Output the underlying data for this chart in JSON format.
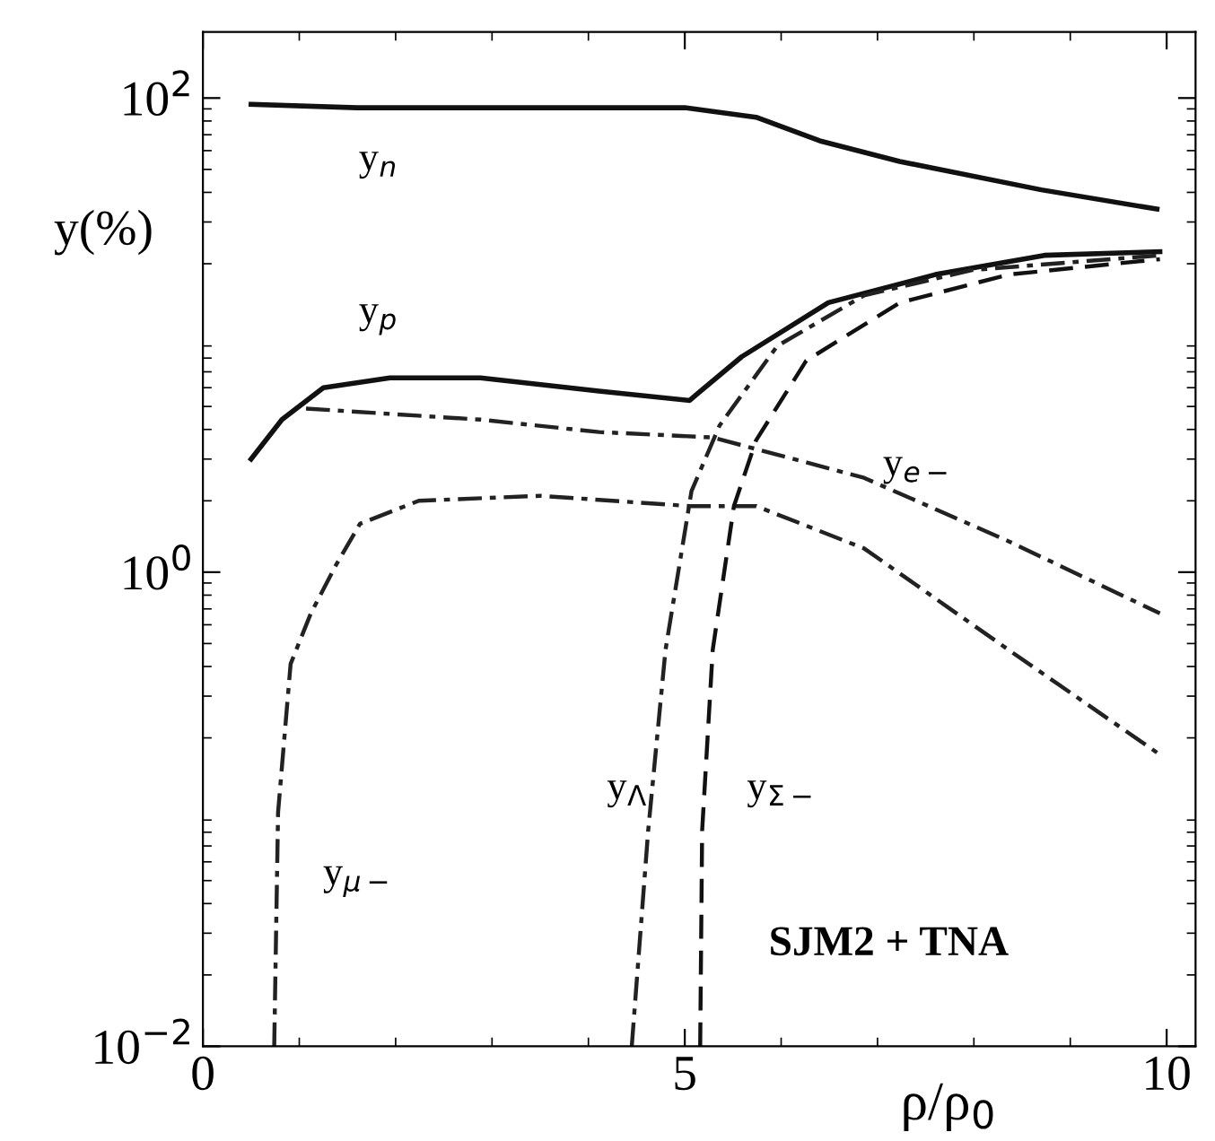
{
  "chart_data": {
    "type": "line",
    "xlabel": "ρ/ρ$_{0}$",
    "ylabel": "y(%)",
    "log": "y",
    "xlim": [
      0,
      10.3
    ],
    "xticks": [
      0,
      5,
      10
    ],
    "ylim": [
      0.01,
      190
    ],
    "yticks": [
      {
        "value": 0.01,
        "label": "10$^{−2}$"
      },
      {
        "value": 1,
        "label": "10$^{0}$"
      },
      {
        "value": 100,
        "label": "10$^{2}$"
      }
    ],
    "grid": false,
    "legend": false,
    "series": [
      {
        "color": "#111111",
        "line_style": "solid",
        "x": [
          0.5,
          1.6,
          3.0,
          4.5,
          5.0,
          5.74,
          6.4,
          7.23,
          8.7,
          9.9
        ],
        "values": [
          94,
          91,
          91,
          91,
          91,
          83,
          66,
          54,
          41,
          34
        ]
      },
      {
        "color": "#111111",
        "line_style": "solid",
        "x": [
          0.5,
          0.82,
          1.25,
          1.94,
          2.88,
          4.11,
          5.05,
          5.14,
          5.59,
          6.49,
          7.6,
          8.73,
          9.93
        ],
        "values": [
          3.0,
          4.4,
          6.0,
          6.6,
          6.6,
          5.8,
          5.3,
          5.7,
          8.1,
          13.7,
          18,
          21.7,
          22.5
        ]
      },
      {
        "color": "#222222",
        "line_style": "dashdot",
        "x": [
          1.07,
          2.88,
          4.11,
          5.29,
          6.86,
          8.36,
          9.93
        ],
        "values": [
          4.9,
          4.4,
          3.9,
          3.7,
          2.5,
          1.35,
          0.67
        ]
      },
      {
        "color": "#222222",
        "line_style": "dashdot",
        "x": [
          0.74,
          0.78,
          0.91,
          1.12,
          1.38,
          1.63,
          2.24,
          3.5,
          5.05,
          5.74,
          6.86,
          8.36,
          9.93
        ],
        "values": [
          0.01,
          0.097,
          0.41,
          0.67,
          1.07,
          1.6,
          2.0,
          2.1,
          1.9,
          1.9,
          1.26,
          0.47,
          0.17
        ]
      },
      {
        "color": "#222222",
        "line_style": "dashdot",
        "x": [
          4.45,
          4.62,
          4.8,
          5.07,
          5.36,
          5.96,
          6.86,
          7.98,
          9.93
        ],
        "values": [
          0.01,
          0.081,
          0.47,
          2.2,
          4.15,
          9,
          14.7,
          18.8,
          21.7
        ]
      },
      {
        "color": "#111111",
        "line_style": "dashed",
        "x": [
          5.16,
          5.18,
          5.29,
          5.51,
          5.74,
          6.26,
          7.23,
          8.36,
          9.93
        ],
        "values": [
          0.01,
          0.081,
          0.47,
          1.9,
          3.6,
          7.8,
          13.7,
          18,
          20.9
        ]
      }
    ],
    "annotations": [
      "y$_{n}$",
      "y$_{p}$",
      "y$_{e−}$",
      "y$_{Λ}$",
      "y$_{Σ−}$",
      "y$_{μ−}$",
      "SJM2 + TNA"
    ]
  }
}
